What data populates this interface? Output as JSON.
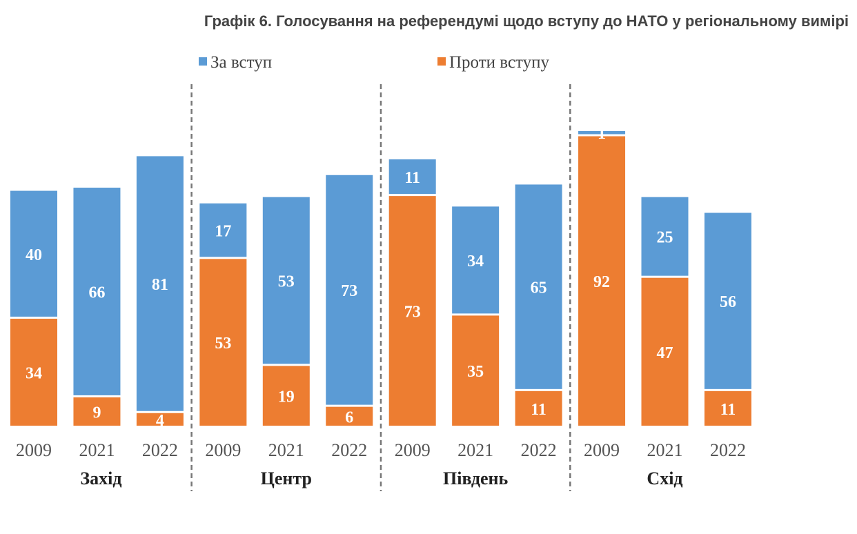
{
  "chart_data": {
    "type": "bar",
    "stacked": true,
    "title": "Графік 6. Голосування на референдумі щодо вступу до НАТО у регіональному вимірі",
    "groups": [
      {
        "name": "Захід",
        "categories": [
          "2009",
          "2021",
          "2022"
        ]
      },
      {
        "name": "Центр",
        "categories": [
          "2009",
          "2021",
          "2022"
        ]
      },
      {
        "name": "Південь",
        "categories": [
          "2009",
          "2021",
          "2022"
        ]
      },
      {
        "name": "Схід",
        "categories": [
          "2009",
          "2021",
          "2022"
        ]
      }
    ],
    "series": [
      {
        "name": "Проти вступу",
        "color": "#ED7D31",
        "values": [
          34,
          9,
          4,
          53,
          19,
          6,
          73,
          35,
          11,
          92,
          47,
          11
        ]
      },
      {
        "name": "За вступ",
        "color": "#5B9BD5",
        "values": [
          40,
          66,
          81,
          17,
          53,
          73,
          11,
          34,
          65,
          1,
          25,
          56
        ]
      }
    ],
    "legend": {
      "position": "top",
      "order": [
        "За вступ",
        "Проти вступу"
      ]
    },
    "grid": false,
    "group_separators": "dashed"
  }
}
